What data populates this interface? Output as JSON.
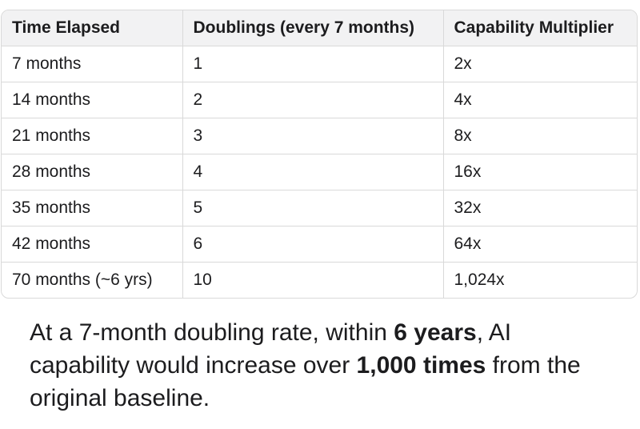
{
  "table": {
    "headers": [
      "Time Elapsed",
      "Doublings (every 7 months)",
      "Capability Multiplier"
    ],
    "rows": [
      [
        "7 months",
        "1",
        "2x"
      ],
      [
        "14 months",
        "2",
        "4x"
      ],
      [
        "21 months",
        "3",
        "8x"
      ],
      [
        "28 months",
        "4",
        "16x"
      ],
      [
        "35 months",
        "5",
        "32x"
      ],
      [
        "42 months",
        "6",
        "64x"
      ],
      [
        "70 months (~6 yrs)",
        "10",
        "1,024x"
      ]
    ]
  },
  "summary": {
    "part1": "At a 7-month doubling rate, within ",
    "bold1": "6 years",
    "part2": ", AI capability would increase over ",
    "bold2": "1,000 times",
    "part3": " from the original baseline."
  }
}
